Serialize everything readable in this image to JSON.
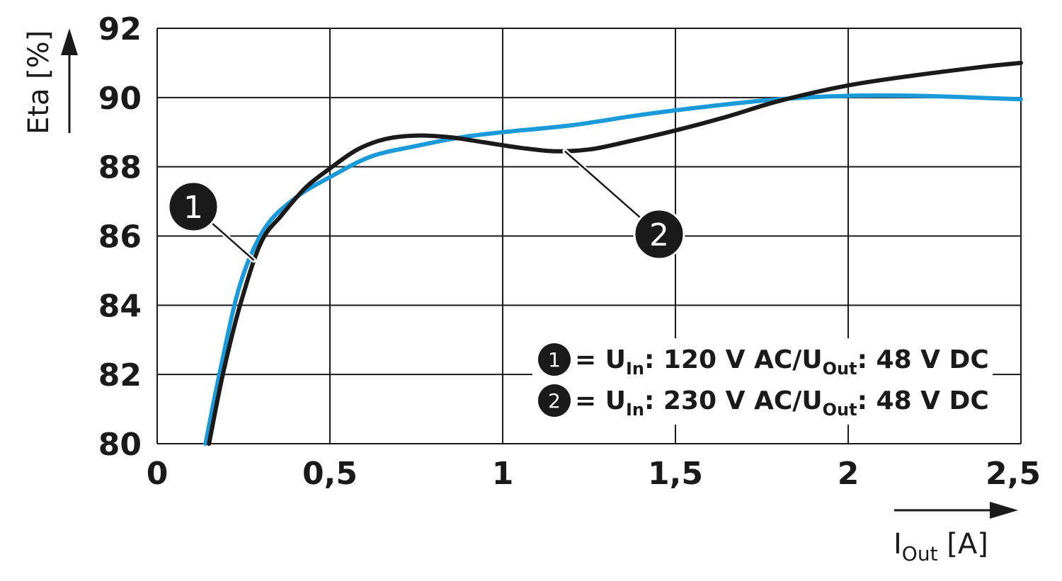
{
  "chart_data": {
    "type": "line",
    "ylabel": "Eta [%]",
    "xlabel_main": "I",
    "xlabel_sub": "Out",
    "xlabel_unit": " [A]",
    "xlim": [
      0,
      2.5
    ],
    "ylim": [
      80,
      92
    ],
    "x_ticks": [
      0,
      0.5,
      1,
      1.5,
      2,
      2.5
    ],
    "x_tick_labels": [
      "0",
      "0,5",
      "1",
      "1,5",
      "2",
      "2,5"
    ],
    "y_ticks": [
      80,
      82,
      84,
      86,
      88,
      90,
      92
    ],
    "y_tick_labels": [
      "80",
      "82",
      "84",
      "86",
      "88",
      "90",
      "92"
    ],
    "grid": true,
    "series": [
      {
        "marker": "1",
        "color": "#1a9ad9",
        "x": [
          0.14,
          0.18,
          0.24,
          0.31,
          0.4,
          0.5,
          0.62,
          0.75,
          0.88,
          1.0,
          1.2,
          1.4,
          1.6,
          1.8,
          2.0,
          2.2,
          2.5
        ],
        "y": [
          80.0,
          82.0,
          84.6,
          86.2,
          87.1,
          87.7,
          88.3,
          88.6,
          88.85,
          89.0,
          89.2,
          89.5,
          89.75,
          89.95,
          90.05,
          90.05,
          89.95
        ]
      },
      {
        "marker": "2",
        "color": "#1a1a1a",
        "x": [
          0.15,
          0.19,
          0.24,
          0.3,
          0.36,
          0.43,
          0.5,
          0.58,
          0.66,
          0.75,
          0.85,
          0.95,
          1.05,
          1.15,
          1.25,
          1.35,
          1.5,
          1.65,
          1.8,
          2.0,
          2.2,
          2.4,
          2.5
        ],
        "y": [
          80.0,
          82.0,
          84.0,
          85.8,
          86.6,
          87.4,
          87.95,
          88.5,
          88.8,
          88.9,
          88.85,
          88.7,
          88.55,
          88.45,
          88.5,
          88.7,
          89.05,
          89.45,
          89.9,
          90.35,
          90.65,
          90.9,
          91.0
        ]
      }
    ],
    "legend": [
      {
        "marker": "1",
        "eq": " = U",
        "in_sub": "In",
        "mid": ": 120 V AC/U",
        "out_sub": "Out",
        "end": ": 48 V DC"
      },
      {
        "marker": "2",
        "eq": " = U",
        "in_sub": "In",
        "mid": ": 230 V AC/U",
        "out_sub": "Out",
        "end": ": 48 V DC"
      }
    ],
    "annotations": [
      {
        "marker": "1",
        "point_x": 0.28,
        "point_y": 85.3
      },
      {
        "marker": "2",
        "point_x": 1.18,
        "point_y": 88.45
      }
    ]
  }
}
